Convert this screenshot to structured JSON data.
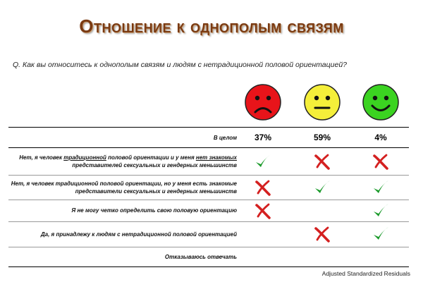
{
  "title": "Отношение к однополым связям",
  "question": "Q. Как вы относитесь к однополым связям и людям с нетрадиционной половой ориентацией?",
  "colors": {
    "sad_face": "#e8141a",
    "neutral_face": "#f5ef3a",
    "happy_face": "#3bd321",
    "check": "#1a9a2a",
    "cross": "#d42020",
    "title": "#7a3a12"
  },
  "chart_data": {
    "type": "table",
    "columns": [
      "sad-face-icon",
      "neutral-face-icon",
      "happy-face-icon"
    ],
    "overall": {
      "label": "В целом",
      "values": [
        "37%",
        "59%",
        "4%"
      ]
    },
    "rows": [
      {
        "label_parts": [
          {
            "t": "Нет, я человек ",
            "u": false
          },
          {
            "t": "традиционной",
            "u": true
          },
          {
            "t": " половой ориентации и у меня ",
            "u": false
          },
          {
            "t": "нет знакомых",
            "u": true
          },
          {
            "t": " представителей сексуальных и гендерных меньшинств",
            "u": false
          }
        ],
        "marks": [
          "check",
          "cross",
          "cross"
        ]
      },
      {
        "label_parts": [
          {
            "t": "Нет, я человек традиционной половой ориентации, но у меня есть знакомые представители сексуальных и гендерных меньшинств",
            "u": false
          }
        ],
        "marks": [
          "cross",
          "check",
          "check"
        ]
      },
      {
        "label_parts": [
          {
            "t": "Я не могу четко определить свою половую ориентацию",
            "u": false
          }
        ],
        "marks": [
          "cross",
          null,
          "check"
        ]
      },
      {
        "label_parts": [
          {
            "t": "Да, я принадлежу к людям с нетрадиционной половой ориентацией",
            "u": false
          }
        ],
        "marks": [
          null,
          "cross",
          "check"
        ]
      },
      {
        "label_parts": [
          {
            "t": "Отказываюсь отвечать",
            "u": false
          }
        ],
        "marks": [
          null,
          null,
          null
        ]
      }
    ]
  },
  "footnote": "Adjusted Standardized Residuals"
}
